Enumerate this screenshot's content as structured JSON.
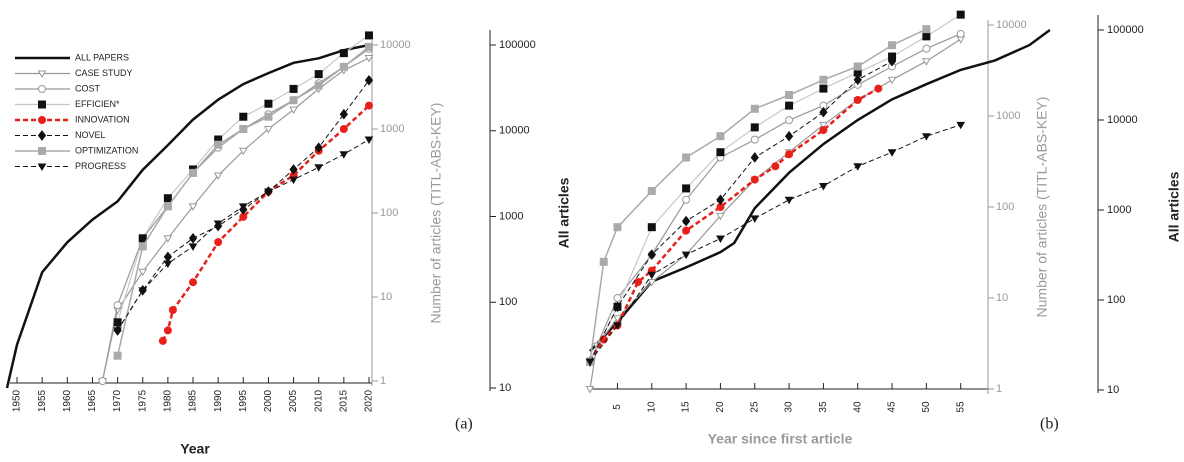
{
  "chart_data": [
    {
      "type": "line",
      "xlabel": "Year",
      "ylabel": "Number of articles (TITL-ABS-KEY)",
      "y2label": "All articles",
      "panel_label": "(a)",
      "xlim": [
        1948.6,
        2020.6
      ],
      "xticks": [
        1950,
        1955,
        1960,
        1965,
        1970,
        1975,
        1980,
        1985,
        1990,
        1995,
        2000,
        2005,
        2010,
        2015,
        2020
      ],
      "ylim": [
        1,
        10000
      ],
      "yticks": [
        1,
        10,
        100,
        1000,
        10000
      ],
      "y2lim": [
        10,
        100000
      ],
      "y2ticks": [
        10,
        100,
        1000,
        10000,
        100000
      ],
      "log_y": true,
      "legend": "upper left",
      "series": [
        {
          "name": "ALL PAPERS",
          "axis": "y2",
          "color": "#111111",
          "marker": "none",
          "dash": "solid",
          "linewidth": 2.5,
          "x": [
            1948,
            1950,
            1955,
            1960,
            1965,
            1970,
            1975,
            1980,
            1985,
            1990,
            1995,
            2000,
            2005,
            2010,
            2015,
            2020
          ],
          "values": [
            10,
            32,
            224,
            500,
            920,
            1500,
            3500,
            6800,
            13500,
            23000,
            35000,
            47000,
            62000,
            70000,
            87000,
            100000
          ]
        },
        {
          "name": "CASE STUDY",
          "color": "#999999",
          "marker": "triangle-down-open",
          "dash": "solid",
          "linewidth": 1.2,
          "x": [
            1967,
            1970,
            1975,
            1980,
            1985,
            1990,
            1995,
            2000,
            2005,
            2010,
            2015,
            2020
          ],
          "values": [
            1,
            7,
            20,
            50,
            120,
            280,
            550,
            1000,
            1700,
            3000,
            5000,
            7000
          ]
        },
        {
          "name": "COST",
          "color": "#999999",
          "marker": "circle-open",
          "dash": "solid",
          "linewidth": 1.2,
          "x": [
            1967,
            1970,
            1975,
            1980,
            1985,
            1990,
            1995,
            2000,
            2005,
            2010,
            2015,
            2020
          ],
          "values": [
            1,
            8,
            50,
            120,
            300,
            600,
            1000,
            1500,
            2200,
            3500,
            5500,
            9000
          ]
        },
        {
          "name": "EFFICIEN*",
          "color": "#c8c8c8",
          "marker_color": "#111111",
          "marker": "square",
          "dash": "solid",
          "linewidth": 1.2,
          "x": [
            1970,
            1975,
            1980,
            1985,
            1990,
            1995,
            2000,
            2005,
            2010,
            2015,
            2020
          ],
          "values": [
            5,
            50,
            150,
            330,
            750,
            1400,
            2000,
            3000,
            4500,
            8000,
            13000
          ]
        },
        {
          "name": "INNOVATION",
          "color": "#e8201c",
          "marker": "circle",
          "dash": "dashed",
          "linewidth": 2.5,
          "x": [
            1979,
            1980,
            1981,
            1985,
            1990,
            1995,
            2000,
            2005,
            2010,
            2015,
            2020
          ],
          "values": [
            3,
            4,
            7,
            15,
            45,
            90,
            180,
            280,
            550,
            1000,
            1900
          ]
        },
        {
          "name": "NOVEL",
          "color": "#111111",
          "marker": "diamond",
          "dash": "dashed",
          "linewidth": 1,
          "x": [
            1970,
            1975,
            1980,
            1985,
            1990,
            1995,
            2000,
            2005,
            2010,
            2015,
            2020
          ],
          "values": [
            4,
            12,
            30,
            50,
            70,
            110,
            180,
            330,
            600,
            1500,
            3800
          ]
        },
        {
          "name": "OPTIMIZATION",
          "color": "#aaaaaa",
          "marker": "square",
          "dash": "solid",
          "linewidth": 1.5,
          "x": [
            1970,
            1975,
            1980,
            1985,
            1990,
            1995,
            2000,
            2005,
            2010,
            2015,
            2020
          ],
          "values": [
            2,
            40,
            120,
            300,
            650,
            1000,
            1400,
            2200,
            3300,
            5500,
            9500
          ]
        },
        {
          "name": "PROGRESS",
          "color": "#111111",
          "marker": "triangle-down",
          "dash": "dashed",
          "linewidth": 1,
          "x": [
            1970,
            1975,
            1980,
            1985,
            1990,
            1995,
            2000,
            2005,
            2010,
            2015,
            2020
          ],
          "values": [
            4,
            12,
            25,
            40,
            75,
            120,
            180,
            250,
            350,
            500,
            750
          ]
        }
      ]
    },
    {
      "type": "line",
      "xlabel": "Year since first article",
      "ylabel": "Number of articles (TITL-ABS-KEY)",
      "y2label": "All articles",
      "panel_label": "(b)",
      "xlim": [
        1,
        75
      ],
      "xticks": [
        5,
        10,
        15,
        20,
        25,
        30,
        35,
        40,
        45,
        50,
        55
      ],
      "ylim": [
        1,
        10000
      ],
      "yticks": [
        1,
        10,
        100,
        1000,
        10000
      ],
      "y2lim": [
        10,
        100000
      ],
      "y2ticks": [
        10,
        100,
        1000,
        10000,
        100000
      ],
      "log_y": true,
      "series": [
        {
          "axis": "y2",
          "color": "#111111",
          "marker": "none",
          "dash": "solid",
          "linewidth": 2.5,
          "x": [
            1,
            5,
            10,
            15,
            20,
            22,
            25,
            30,
            35,
            40,
            45,
            50,
            55,
            60,
            65,
            68
          ],
          "values": [
            27,
            57,
            160,
            230,
            340,
            430,
            1050,
            2600,
            5400,
            10000,
            17000,
            25000,
            36000,
            46000,
            68000,
            100000
          ]
        },
        {
          "color": "#999999",
          "marker": "triangle-down-open",
          "dash": "solid",
          "linewidth": 1.2,
          "x": [
            1,
            2,
            5,
            10,
            15,
            20,
            25,
            30,
            35,
            40,
            45,
            50,
            55
          ],
          "values": [
            1,
            3,
            6,
            15,
            30,
            80,
            200,
            400,
            800,
            1500,
            2500,
            4000,
            7000
          ]
        },
        {
          "color": "#999999",
          "marker": "circle-open",
          "dash": "solid",
          "linewidth": 1.2,
          "x": [
            1,
            5,
            10,
            15,
            20,
            25,
            30,
            35,
            40,
            45,
            50,
            55
          ],
          "values": [
            2,
            10,
            30,
            120,
            350,
            550,
            900,
            1300,
            2200,
            3500,
            5500,
            8000
          ]
        },
        {
          "color": "#c8c8c8",
          "marker_color": "#111111",
          "marker": "square",
          "dash": "solid",
          "linewidth": 1.2,
          "x": [
            1,
            5,
            10,
            15,
            20,
            25,
            30,
            35,
            40,
            45,
            50,
            55
          ],
          "values": [
            2,
            8,
            60,
            160,
            400,
            750,
            1300,
            2000,
            3000,
            4500,
            7500,
            13000
          ]
        },
        {
          "color": "#e8201c",
          "marker": "circle",
          "dash": "dashed",
          "linewidth": 2.5,
          "x": [
            1,
            3,
            5,
            8,
            10,
            15,
            20,
            25,
            28,
            30,
            35,
            40,
            43
          ],
          "values": [
            2,
            3.5,
            5,
            15,
            20,
            55,
            100,
            200,
            280,
            380,
            700,
            1500,
            2000
          ]
        },
        {
          "color": "#111111",
          "marker": "diamond",
          "dash": "dashed",
          "linewidth": 1,
          "x": [
            1,
            5,
            10,
            15,
            20,
            25,
            30,
            35,
            40,
            45
          ],
          "values": [
            2,
            8,
            30,
            70,
            120,
            350,
            600,
            1100,
            2500,
            4000
          ]
        },
        {
          "color": "#aaaaaa",
          "marker": "square",
          "dash": "solid",
          "linewidth": 1.5,
          "x": [
            1,
            3,
            5,
            10,
            15,
            20,
            25,
            30,
            35,
            40,
            45,
            50
          ],
          "values": [
            2,
            25,
            60,
            150,
            350,
            600,
            1200,
            1700,
            2500,
            3500,
            6000,
            9000
          ]
        },
        {
          "color": "#111111",
          "marker": "triangle-down",
          "dash": "dashed",
          "linewidth": 1,
          "x": [
            1,
            5,
            10,
            15,
            20,
            25,
            30,
            35,
            40,
            45,
            50,
            55
          ],
          "values": [
            2,
            5,
            18,
            30,
            45,
            75,
            120,
            170,
            280,
            400,
            600,
            800
          ]
        }
      ]
    }
  ]
}
